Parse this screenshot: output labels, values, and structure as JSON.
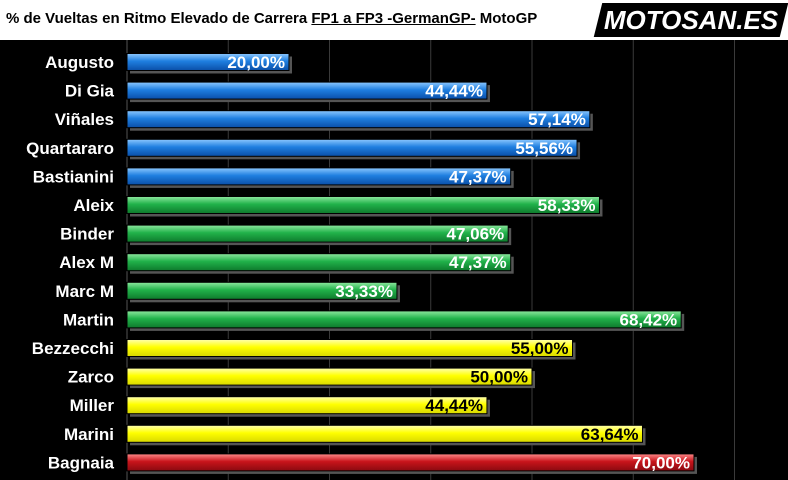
{
  "header": {
    "title_prefix": "% de Vueltas en Ritmo Elevado de Carrera ",
    "title_underlined": "FP1 a FP3 -GermanGP-",
    "title_suffix": " MotoGP",
    "logo_text": "MOTOSAN.ES"
  },
  "colors": {
    "blue": "#1f7fe0",
    "green": "#21b24a",
    "yellow": "#ffff00",
    "red": "#c8141b"
  },
  "chart_data": {
    "type": "bar",
    "orientation": "horizontal",
    "title": "% de Vueltas en Ritmo Elevado de Carrera FP1 a FP3 -GermanGP- MotoGP",
    "categories": [
      "Augusto",
      "Di Gia",
      "Viñales",
      "Quartararo",
      "Bastianini",
      "Aleix",
      "Binder",
      "Alex M",
      "Marc M",
      "Martin",
      "Bezzecchi",
      "Zarco",
      "Miller",
      "Marini",
      "Bagnaia"
    ],
    "values": [
      20.0,
      44.44,
      57.14,
      55.56,
      47.37,
      58.33,
      47.06,
      47.37,
      33.33,
      68.42,
      55.0,
      50.0,
      44.44,
      63.64,
      70.0
    ],
    "labels": [
      "20,00%",
      "44,44%",
      "57,14%",
      "55,56%",
      "47,37%",
      "58,33%",
      "47,06%",
      "47,37%",
      "33,33%",
      "68,42%",
      "55,00%",
      "50,00%",
      "44,44%",
      "63,64%",
      "70,00%"
    ],
    "bar_colors": [
      "blue",
      "blue",
      "blue",
      "blue",
      "blue",
      "green",
      "green",
      "green",
      "green",
      "green",
      "yellow",
      "yellow",
      "yellow",
      "yellow",
      "red"
    ],
    "xlim": [
      0,
      100
    ],
    "grid": true,
    "legend": "none"
  }
}
